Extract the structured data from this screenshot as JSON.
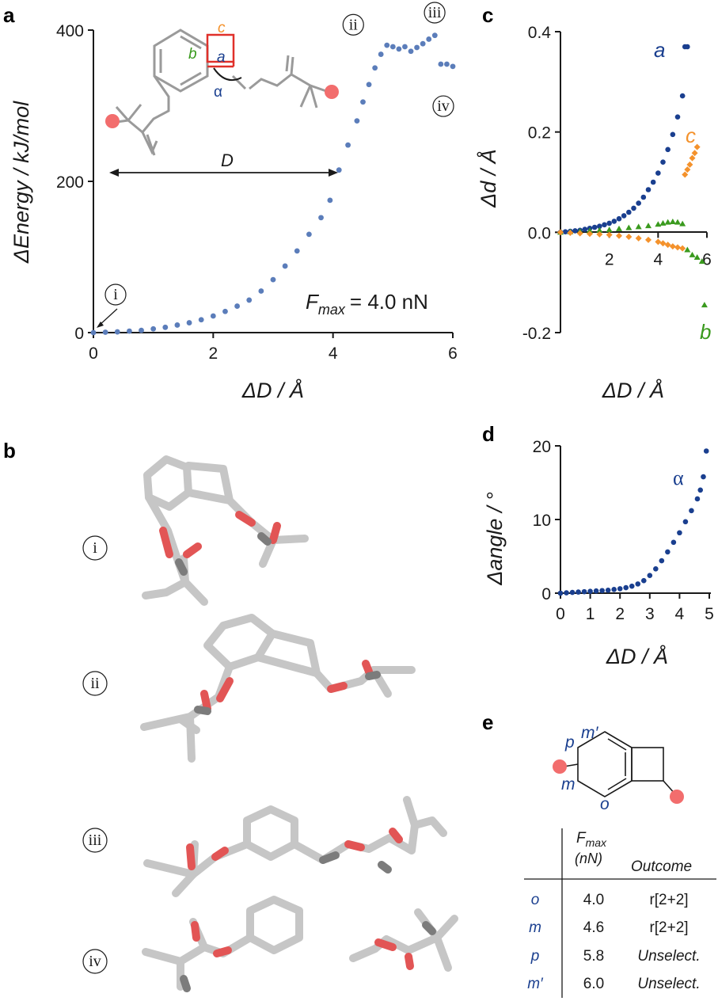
{
  "panels": {
    "a": "a",
    "b": "b",
    "c": "c",
    "d": "d",
    "e": "e"
  },
  "colors": {
    "blue": "#1a3f8f",
    "blue_light": "#5b7dba",
    "orange": "#f4922c",
    "green": "#3a9a1e",
    "red_handle": "#f26d6d",
    "gray_bond": "#a8a8a8"
  },
  "chart_data": [
    {
      "id": "a",
      "type": "scatter",
      "xlabel": "ΔD / Å",
      "ylabel": "ΔEnergy / kJ/mol",
      "xlim": [
        0,
        6
      ],
      "ylim": [
        0,
        400
      ],
      "xticks": [
        "0",
        "2",
        "4",
        "6"
      ],
      "yticks": [
        "0",
        "200",
        "400"
      ],
      "annotation_prefix": "F",
      "annotation_sub": "max",
      "annotation_value": "= 4.0 nN",
      "inset_labels": {
        "a": "a",
        "b": "b",
        "c": "c",
        "alpha": "α",
        "D": "D"
      },
      "point_markers": [
        {
          "label": "i",
          "x": 0.0,
          "y": 0
        },
        {
          "label": "ii",
          "x": 4.55,
          "y": 384
        },
        {
          "label": "iii",
          "x": 5.75,
          "y": 412
        },
        {
          "label": "iv",
          "x": 5.9,
          "y": 335
        }
      ],
      "series": [
        {
          "x": [
            0.0,
            0.2,
            0.4,
            0.6,
            0.8,
            1.0,
            1.2,
            1.4,
            1.6,
            1.8,
            2.0,
            2.2,
            2.4,
            2.6,
            2.8,
            3.0,
            3.2,
            3.4,
            3.6,
            3.8,
            3.95,
            4.1,
            4.25,
            4.4,
            4.5,
            4.6,
            4.7,
            4.8,
            4.9,
            5.0,
            5.1,
            5.2,
            5.3,
            5.4,
            5.5,
            5.6,
            5.7,
            5.8,
            5.9,
            6.0
          ],
          "y": [
            0,
            0.5,
            1,
            2,
            3,
            5,
            7,
            10,
            13,
            17,
            22,
            28,
            35,
            43,
            55,
            70,
            88,
            108,
            130,
            152,
            175,
            215,
            248,
            280,
            305,
            328,
            350,
            368,
            380,
            378,
            375,
            378,
            372,
            377,
            382,
            388,
            393,
            355,
            355,
            352
          ]
        }
      ]
    },
    {
      "id": "c",
      "type": "scatter",
      "xlabel": "ΔD / Å",
      "ylabel": "Δd / Å",
      "xlim": [
        0,
        6
      ],
      "ylim": [
        -0.2,
        0.4
      ],
      "xticks": [
        "2",
        "4",
        "6"
      ],
      "yticks": [
        "-0.2",
        "0.0",
        "0.2",
        "0.4"
      ],
      "series": [
        {
          "name": "a",
          "x": [
            0.0,
            0.2,
            0.4,
            0.6,
            0.8,
            1.0,
            1.2,
            1.4,
            1.6,
            1.8,
            2.0,
            2.2,
            2.4,
            2.6,
            2.8,
            3.0,
            3.2,
            3.4,
            3.6,
            3.8,
            4.0,
            4.2,
            4.4,
            4.6,
            4.8,
            5.0,
            5.1,
            5.2
          ],
          "y": [
            0,
            0.001,
            0.002,
            0.003,
            0.004,
            0.006,
            0.008,
            0.01,
            0.012,
            0.015,
            0.018,
            0.022,
            0.027,
            0.033,
            0.04,
            0.048,
            0.058,
            0.07,
            0.085,
            0.1,
            0.118,
            0.14,
            0.165,
            0.195,
            0.23,
            0.272,
            0.37,
            0.37
          ]
        },
        {
          "name": "b",
          "x": [
            0.0,
            0.4,
            0.8,
            1.2,
            1.6,
            2.0,
            2.4,
            2.8,
            3.2,
            3.6,
            4.0,
            4.2,
            4.4,
            4.6,
            4.8,
            5.0,
            5.2,
            5.4,
            5.6,
            5.8,
            5.9
          ],
          "y": [
            0,
            0.001,
            0.002,
            0.003,
            0.004,
            0.005,
            0.007,
            0.009,
            0.011,
            0.013,
            0.016,
            0.018,
            0.02,
            0.021,
            0.02,
            0.017,
            -0.035,
            -0.045,
            -0.05,
            -0.058,
            -0.145
          ]
        },
        {
          "name": "c",
          "x": [
            0.0,
            0.4,
            0.8,
            1.2,
            1.6,
            2.0,
            2.4,
            2.8,
            3.2,
            3.6,
            4.0,
            4.2,
            4.4,
            4.6,
            4.8,
            5.0,
            5.1,
            5.2,
            5.3,
            5.4,
            5.5,
            5.6
          ],
          "y": [
            0,
            -0.001,
            -0.002,
            -0.003,
            -0.004,
            -0.005,
            -0.007,
            -0.009,
            -0.012,
            -0.015,
            -0.019,
            -0.022,
            -0.025,
            -0.028,
            -0.03,
            -0.032,
            0.115,
            0.125,
            0.135,
            0.148,
            0.158,
            0.17
          ]
        }
      ]
    },
    {
      "id": "d",
      "type": "scatter",
      "xlabel": "ΔD / Å",
      "ylabel": "Δangle / °",
      "xlim": [
        0,
        5
      ],
      "ylim": [
        0,
        20
      ],
      "xticks": [
        "0",
        "1",
        "2",
        "3",
        "4",
        "5"
      ],
      "yticks": [
        "0",
        "10",
        "20"
      ],
      "series": [
        {
          "name": "α",
          "x": [
            0.0,
            0.2,
            0.4,
            0.6,
            0.8,
            1.0,
            1.2,
            1.4,
            1.6,
            1.8,
            2.0,
            2.2,
            2.4,
            2.6,
            2.8,
            3.0,
            3.2,
            3.4,
            3.6,
            3.8,
            4.0,
            4.2,
            4.4,
            4.6,
            4.7,
            4.8,
            4.9
          ],
          "y": [
            0,
            0.05,
            0.1,
            0.15,
            0.2,
            0.25,
            0.3,
            0.35,
            0.4,
            0.5,
            0.6,
            0.75,
            0.95,
            1.25,
            1.7,
            2.4,
            3.3,
            4.4,
            5.6,
            6.9,
            8.2,
            9.7,
            11.2,
            12.8,
            14.0,
            15.8,
            19.3
          ]
        }
      ]
    }
  ],
  "structures": [
    "i",
    "ii",
    "iii",
    "iv"
  ],
  "panel_e": {
    "ring_labels": {
      "m_prime": "m′",
      "p": "p",
      "m": "m",
      "o": "o"
    },
    "table": {
      "headers": [
        "",
        "F",
        "(nN)",
        "Outcome"
      ],
      "header_sub": "max",
      "rows": [
        {
          "pos": "o",
          "fmax": "4.0",
          "outcome": "r[2+2]"
        },
        {
          "pos": "m",
          "fmax": "4.6",
          "outcome": "r[2+2]"
        },
        {
          "pos": "p",
          "fmax": "5.8",
          "outcome": "Unselect."
        },
        {
          "pos": "m′",
          "fmax": "6.0",
          "outcome": "Unselect."
        }
      ]
    }
  }
}
